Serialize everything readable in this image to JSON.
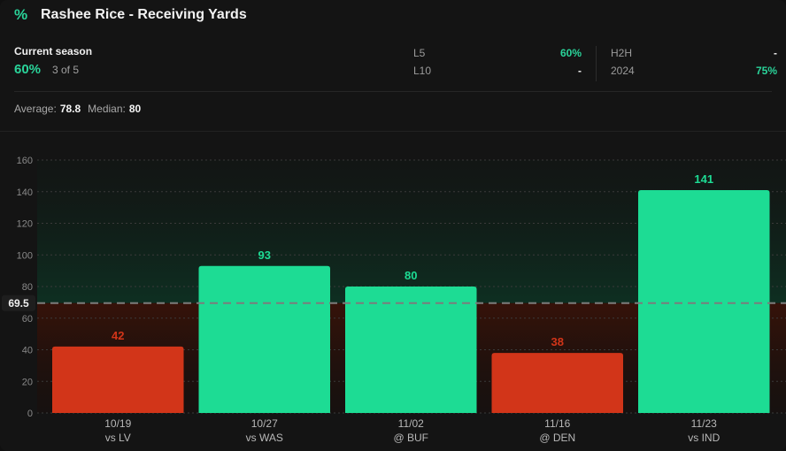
{
  "header": {
    "icon": "percent-icon",
    "icon_glyph": "%",
    "title": "Rashee Rice - Receiving Yards"
  },
  "season": {
    "label": "Current season",
    "hit_rate": "60%",
    "count": "3 of 5"
  },
  "stats": {
    "l5": {
      "label": "L5",
      "value": "60%"
    },
    "l10": {
      "label": "L10",
      "value": "-"
    },
    "h2h": {
      "label": "H2H",
      "value": "-"
    },
    "y2024": {
      "label": "2024",
      "value": "75%"
    }
  },
  "summary": {
    "average_label": "Average:",
    "average_value": "78.8",
    "median_label": "Median:",
    "median_value": "80"
  },
  "colors": {
    "over": "#1ddc94",
    "under": "#d23519",
    "accent": "#2ad49a"
  },
  "chart_data": {
    "type": "bar",
    "categories": [
      "10/19",
      "10/27",
      "11/02",
      "11/16",
      "11/23"
    ],
    "opponents": [
      "vs LV",
      "vs WAS",
      "@ BUF",
      "@ DEN",
      "vs IND"
    ],
    "values": [
      42,
      93,
      80,
      38,
      141
    ],
    "labels": [
      "42",
      "93",
      "80",
      "38",
      "141"
    ],
    "line": 69.5,
    "line_label": "69.5",
    "ylim": [
      0,
      160
    ],
    "yticks": [
      "0",
      "20",
      "40",
      "60",
      "80",
      "100",
      "120",
      "140",
      "160"
    ],
    "grid": true
  }
}
